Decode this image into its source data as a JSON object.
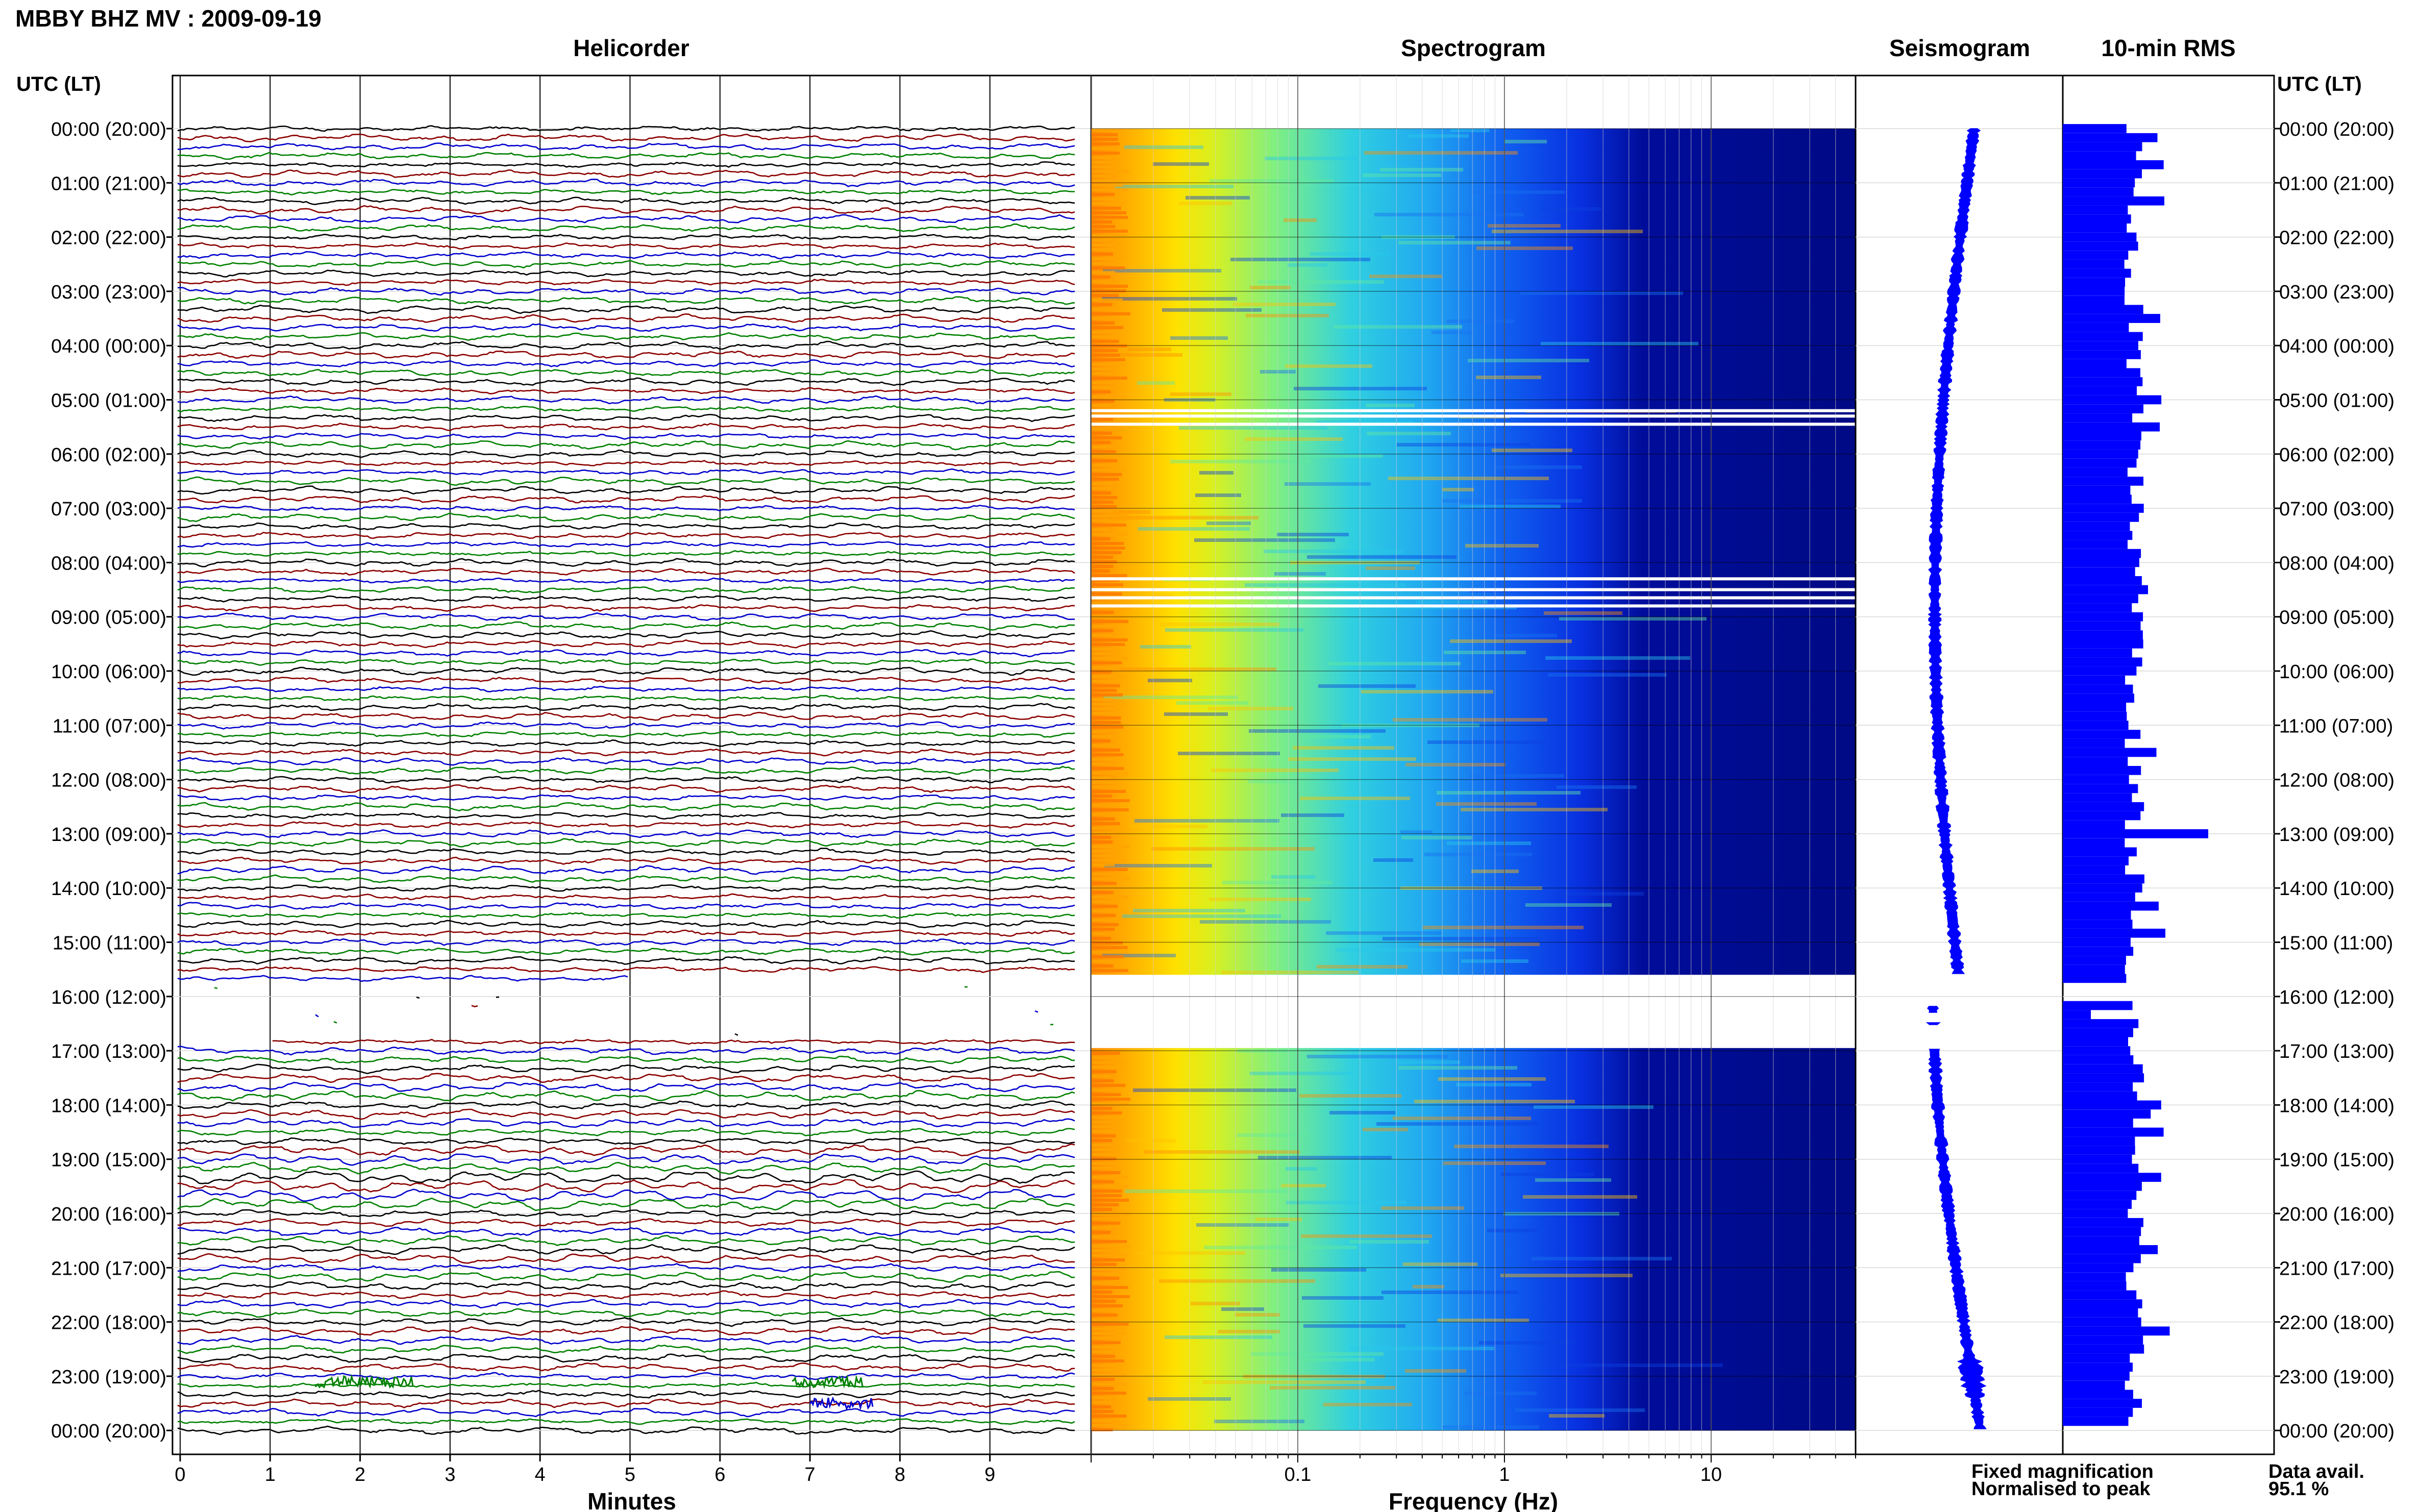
{
  "header": {
    "station_title": "MBBY BHZ MV : 2009-09-19",
    "left_axis_title": "UTC (LT)",
    "right_axis_title": "UTC (LT)"
  },
  "panels": {
    "helicorder": "Helicorder",
    "spectrogram": "Spectrogram",
    "seismogram": "Seismogram",
    "rms": "10-min RMS"
  },
  "time_labels": [
    "00:00 (20:00)",
    "01:00 (21:00)",
    "02:00 (22:00)",
    "03:00 (23:00)",
    "04:00 (00:00)",
    "05:00 (01:00)",
    "06:00 (02:00)",
    "07:00 (03:00)",
    "08:00 (04:00)",
    "09:00 (05:00)",
    "10:00 (06:00)",
    "11:00 (07:00)",
    "12:00 (08:00)",
    "13:00 (09:00)",
    "14:00 (10:00)",
    "15:00 (11:00)",
    "16:00 (12:00)",
    "17:00 (13:00)",
    "18:00 (14:00)",
    "19:00 (15:00)",
    "20:00 (16:00)",
    "21:00 (17:00)",
    "22:00 (18:00)",
    "23:00 (19:00)",
    "00:00 (20:00)"
  ],
  "legend": {
    "fixed": "Fixed magnification",
    "normalised": "Normalised to peak",
    "fixed_color": "#0000ff",
    "normalised_color": "#ff0000"
  },
  "availability": {
    "label": "Data avail.",
    "value": "95.1 %"
  },
  "colors": {
    "trace_cycle": [
      "#000000",
      "#8b0000",
      "#0000cd",
      "#008000"
    ],
    "seis": "#0000ff",
    "rms": "#0000ff"
  },
  "chart_data": [
    {
      "type": "line",
      "title": "Helicorder",
      "xlabel": "Minutes",
      "x_ticks": [
        0,
        1,
        2,
        3,
        4,
        5,
        6,
        7,
        8,
        9
      ],
      "xlim": [
        0,
        10
      ],
      "line_minutes": 10,
      "hours_range": [
        0,
        24
      ],
      "gaps_hours": [
        [
          15.75,
          16.85
        ]
      ],
      "events": [
        {
          "hour": 23.1,
          "minute_start": 1.5,
          "minute_end": 2.6,
          "color": "#008000"
        },
        {
          "hour": 23.1,
          "minute_start": 6.8,
          "minute_end": 7.6,
          "color": "#008000"
        },
        {
          "hour": 23.5,
          "minute_start": 7.0,
          "minute_end": 7.7,
          "color": "#0000cd"
        }
      ]
    },
    {
      "type": "heatmap",
      "title": "Spectrogram",
      "xlabel": "Frequency (Hz)",
      "x_scale": "log",
      "x_tick_labels": [
        "0.1",
        "1",
        "10"
      ],
      "x_tick_values": [
        0.1,
        1,
        10
      ],
      "xlim": [
        0.01,
        50
      ],
      "y_hours": [
        0,
        24
      ],
      "gaps_hours": [
        [
          15.6,
          16.95
        ]
      ],
      "white_lines_hours": [
        5.2,
        5.3,
        5.45,
        8.3,
        8.5,
        8.65,
        8.8
      ]
    },
    {
      "type": "line",
      "title": "Seismogram",
      "description": "Long-period trace over 24 h",
      "y_hours": [
        0,
        24
      ],
      "gaps_hours": [
        [
          15.6,
          16.95
        ]
      ]
    },
    {
      "type": "bar",
      "title": "10-min RMS",
      "orientation": "horizontal",
      "bin_minutes": 10,
      "y_hours": [
        0,
        24
      ],
      "gaps_hours": [
        [
          15.9,
          16.1
        ]
      ]
    }
  ]
}
